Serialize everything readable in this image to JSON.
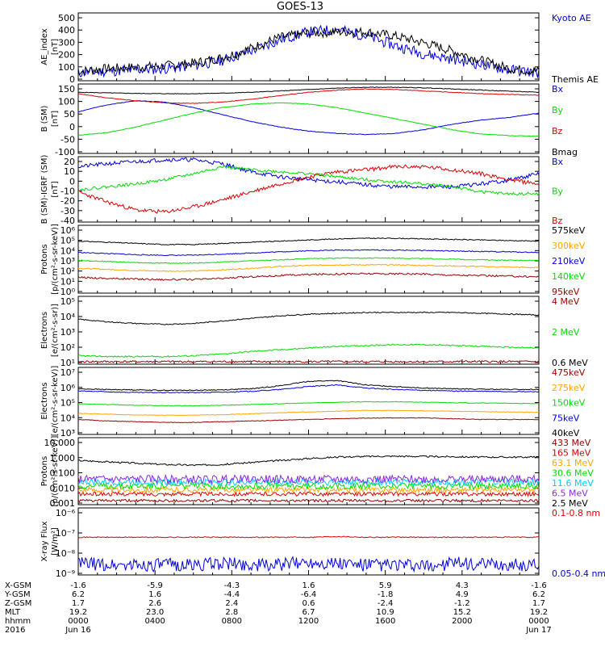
{
  "title": "GOES-13",
  "colors": {
    "black": "#000000",
    "blue": "#0000dd",
    "green": "#00dd00",
    "red": "#dd0000",
    "orange": "#ffa500",
    "darkred": "#990000",
    "yellow": "#f0f000",
    "cyan": "#00ccff",
    "purple": "#8a2be2"
  },
  "chart_data": [
    {
      "type": "line",
      "panel": "ae",
      "ylabel": "AE_index\n[nT]",
      "ylim": [
        0,
        500
      ],
      "yticks": [
        "500",
        "400",
        "300",
        "200",
        "100",
        "0"
      ],
      "series": [
        {
          "name": "Kyoto AE",
          "color": "blue",
          "seed": 11,
          "base": [
            60,
            70,
            80,
            90,
            110,
            150,
            220,
            300,
            360,
            380,
            330,
            260,
            200,
            160,
            120,
            80,
            60
          ],
          "noise": 40
        },
        {
          "name": "Themis AE",
          "color": "black",
          "seed": 7,
          "base": [
            70,
            90,
            100,
            110,
            130,
            170,
            240,
            320,
            350,
            360,
            360,
            330,
            280,
            220,
            150,
            90,
            70
          ],
          "noise": 35
        }
      ]
    },
    {
      "type": "line",
      "panel": "bsm",
      "ylabel": "B (SM)\n[nT]",
      "ylim": [
        -120,
        130
      ],
      "yticks": [
        "150",
        "100",
        "50",
        "0",
        "-50",
        "-100"
      ],
      "series": [
        {
          "name": "Bx",
          "color": "blue",
          "seed": 2,
          "base": [
            30,
            55,
            70,
            65,
            45,
            20,
            -5,
            -25,
            -40,
            -48,
            -52,
            -48,
            -35,
            -15,
            0,
            10,
            25
          ],
          "noise": 1
        },
        {
          "name": "By",
          "color": "green",
          "seed": 3,
          "base": [
            -55,
            -45,
            -25,
            0,
            25,
            45,
            58,
            62,
            58,
            45,
            25,
            5,
            -15,
            -35,
            -50,
            -56,
            -58
          ],
          "noise": 1
        },
        {
          "name": "Bz",
          "color": "red",
          "seed": 4,
          "base": [
            95,
            80,
            70,
            62,
            60,
            65,
            75,
            88,
            100,
            108,
            112,
            110,
            105,
            100,
            95,
            92,
            90
          ],
          "noise": 1
        },
        {
          "name": "Bmag",
          "color": "black",
          "seed": 5,
          "base": [
            100,
            98,
            96,
            95,
            95,
            97,
            100,
            105,
            110,
            115,
            118,
            118,
            116,
            112,
            108,
            104,
            100
          ],
          "noise": 1
        }
      ]
    },
    {
      "type": "line",
      "panel": "bigrf",
      "ylabel": "B (SM)-IGRF (SM)\n[nT]",
      "ylim": [
        -40,
        25
      ],
      "yticks": [
        "20",
        "10",
        "0",
        "-10",
        "-20",
        "-30",
        "-40"
      ],
      "series": [
        {
          "name": "Bx",
          "color": "blue",
          "seed": 21,
          "base": [
            15,
            18,
            20,
            22,
            22,
            18,
            10,
            5,
            2,
            0,
            -3,
            -5,
            -5,
            -5,
            -2,
            2,
            8
          ],
          "noise": 2
        },
        {
          "name": "By",
          "color": "green",
          "seed": 22,
          "base": [
            -8,
            -5,
            -2,
            2,
            8,
            15,
            12,
            10,
            8,
            5,
            2,
            0,
            -2,
            -5,
            -10,
            -12,
            -12
          ],
          "noise": 1.5
        },
        {
          "name": "Bz",
          "color": "red",
          "seed": 23,
          "base": [
            -10,
            -20,
            -28,
            -30,
            -25,
            -18,
            -10,
            -2,
            5,
            10,
            12,
            15,
            15,
            12,
            8,
            2,
            -2
          ],
          "noise": 2
        }
      ]
    },
    {
      "type": "line",
      "panel": "protons",
      "log": true,
      "ylabel": "Protons\n[p/(cm²-s-sr-keV)]",
      "ylim": [
        1,
        1000000
      ],
      "yticks": [
        "10⁶",
        "10⁵",
        "10⁴",
        "10³",
        "10²",
        "10¹",
        "10⁰"
      ],
      "series": [
        {
          "name": "575keV",
          "color": "black",
          "seed": 31,
          "base": [
            4.6,
            4.5,
            4.4,
            4.3,
            4.3,
            4.4,
            4.5,
            4.6,
            4.7,
            4.8,
            4.85,
            4.85,
            4.8,
            4.75,
            4.7,
            4.65,
            4.6
          ],
          "noise": 0.04
        },
        {
          "name": "300keV",
          "color": "orange",
          "seed": 32,
          "base": [
            2.2,
            2.1,
            2.0,
            1.95,
            1.95,
            2.05,
            2.2,
            2.35,
            2.45,
            2.5,
            2.5,
            2.5,
            2.45,
            2.4,
            2.35,
            2.3,
            2.25
          ],
          "noise": 0.05
        },
        {
          "name": "210keV",
          "color": "blue",
          "seed": 33,
          "base": [
            3.6,
            3.5,
            3.4,
            3.35,
            3.35,
            3.45,
            3.55,
            3.65,
            3.75,
            3.8,
            3.82,
            3.8,
            3.78,
            3.72,
            3.68,
            3.65,
            3.6
          ],
          "noise": 0.04
        },
        {
          "name": "140keV",
          "color": "green",
          "seed": 34,
          "base": [
            2.9,
            2.8,
            2.7,
            2.65,
            2.65,
            2.75,
            2.85,
            2.95,
            3.05,
            3.1,
            3.1,
            3.1,
            3.05,
            3.0,
            2.95,
            2.9,
            2.9
          ],
          "noise": 0.04
        },
        {
          "name": "95keV",
          "color": "darkred",
          "seed": 35,
          "base": [
            1.4,
            1.3,
            1.25,
            1.2,
            1.2,
            1.3,
            1.45,
            1.55,
            1.65,
            1.7,
            1.72,
            1.7,
            1.68,
            1.6,
            1.55,
            1.5,
            1.45
          ],
          "noise": 0.08
        }
      ]
    },
    {
      "type": "line",
      "panel": "electrons1",
      "log": true,
      "ylabel": "Electrons\n[e/(cm²-s-sr)]",
      "ylim": [
        10,
        100000
      ],
      "yticks": [
        "10⁵",
        "10⁴",
        "10³",
        "10²",
        "10¹"
      ],
      "series": [
        {
          "name": "4 MeV",
          "color": "darkred",
          "seed": 41,
          "base": [
            1.15,
            1.15,
            1.15,
            1.15,
            1.15,
            1.15,
            1.15,
            1.15,
            1.15,
            1.15,
            1.15,
            1.15,
            1.15,
            1.15,
            1.15,
            1.15,
            1.15
          ],
          "noise": 0.06
        },
        {
          "name": "2 MeV",
          "color": "green",
          "seed": 42,
          "base": [
            1.5,
            1.45,
            1.45,
            1.45,
            1.5,
            1.6,
            1.75,
            1.85,
            1.95,
            2.05,
            2.1,
            2.15,
            2.15,
            2.1,
            2.05,
            2.0,
            1.95
          ],
          "noise": 0.04
        },
        {
          "name": "0.6 MeV",
          "color": "black",
          "seed": 43,
          "base": [
            3.65,
            3.5,
            3.4,
            3.35,
            3.4,
            3.55,
            3.7,
            3.85,
            3.95,
            4.0,
            4.05,
            4.05,
            4.05,
            4.05,
            4.0,
            3.95,
            3.9
          ],
          "noise": 0.03
        }
      ]
    },
    {
      "type": "line",
      "panel": "electrons2",
      "log": true,
      "ylabel": "Electrons\n[e/(cm²-s-sr-keV)]",
      "ylim": [
        1000,
        30000000
      ],
      "yticks": [
        "10⁷",
        "10⁶",
        "10⁵",
        "10⁴",
        "10³"
      ],
      "series": [
        {
          "name": "475keV",
          "color": "darkred",
          "seed": 51,
          "base": [
            4.0,
            3.9,
            3.85,
            3.8,
            3.8,
            3.85,
            3.9,
            3.95,
            4.0,
            4.05,
            4.1,
            4.1,
            4.1,
            4.05,
            4.0,
            4.0,
            4.0
          ],
          "noise": 0.02
        },
        {
          "name": "275keV",
          "color": "orange",
          "seed": 52,
          "base": [
            4.4,
            4.35,
            4.3,
            4.28,
            4.28,
            4.32,
            4.38,
            4.45,
            4.5,
            4.55,
            4.6,
            4.6,
            4.58,
            4.55,
            4.52,
            4.5,
            4.48
          ],
          "noise": 0.02
        },
        {
          "name": "150keV",
          "color": "green",
          "seed": 53,
          "base": [
            5.05,
            5.0,
            4.95,
            4.92,
            4.92,
            4.95,
            5.0,
            5.05,
            5.1,
            5.15,
            5.18,
            5.18,
            5.15,
            5.12,
            5.1,
            5.08,
            5.05
          ],
          "noise": 0.02
        },
        {
          "name": "75keV",
          "color": "blue",
          "seed": 54,
          "base": [
            5.9,
            5.85,
            5.8,
            5.8,
            5.8,
            5.82,
            5.88,
            6.0,
            6.2,
            6.3,
            6.1,
            6.0,
            5.95,
            5.9,
            5.88,
            5.86,
            5.85
          ],
          "noise": 0.03
        },
        {
          "name": "40keV",
          "color": "black",
          "seed": 55,
          "base": [
            6.05,
            6.0,
            5.98,
            5.95,
            5.95,
            5.98,
            6.05,
            6.25,
            6.55,
            6.6,
            6.3,
            6.2,
            6.1,
            6.05,
            6.02,
            6.0,
            6.0
          ],
          "noise": 0.03
        }
      ]
    },
    {
      "type": "line",
      "panel": "protons2",
      "log": true,
      "ylabel": "Protons\n[p/(cm²-s-sr-keV)]",
      "ylim": [
        0.001,
        100
      ],
      "yticks": [
        "10.000",
        "1.000",
        "0.100",
        "0.010",
        "0.001"
      ],
      "series": [
        {
          "name": "433 MeV",
          "color": "darkred",
          "seed": 61,
          "base": [
            -2.7,
            -2.7,
            -2.7,
            -2.7,
            -2.7,
            -2.7,
            -2.7,
            -2.7,
            -2.7,
            -2.7,
            -2.7,
            -2.7,
            -2.7,
            -2.7,
            -2.7,
            -2.7,
            -2.7
          ],
          "noise": 0.1
        },
        {
          "name": "165 MeV",
          "color": "red",
          "seed": 62,
          "base": [
            -2.2,
            -2.2,
            -2.2,
            -2.2,
            -2.2,
            -2.2,
            -2.2,
            -2.2,
            -2.2,
            -2.2,
            -2.2,
            -2.2,
            -2.2,
            -2.2,
            -2.2,
            -2.2,
            -2.2
          ],
          "noise": 0.15
        },
        {
          "name": "63.1 MeV",
          "color": "orange",
          "seed": 63,
          "base": [
            -1.9,
            -1.9,
            -1.9,
            -1.9,
            -1.9,
            -1.9,
            -1.9,
            -1.9,
            -1.9,
            -1.9,
            -1.9,
            -1.9,
            -1.9,
            -1.9,
            -1.9,
            -1.9,
            -1.9
          ],
          "noise": 0.2
        },
        {
          "name": "30.6 MeV",
          "color": "green",
          "seed": 64,
          "base": [
            -1.6,
            -1.6,
            -1.6,
            -1.6,
            -1.6,
            -1.6,
            -1.6,
            -1.6,
            -1.6,
            -1.6,
            -1.6,
            -1.6,
            -1.6,
            -1.6,
            -1.6,
            -1.6,
            -1.6
          ],
          "noise": 0.25
        },
        {
          "name": "11.6 MeV",
          "color": "cyan",
          "seed": 65,
          "base": [
            -1.3,
            -1.3,
            -1.3,
            -1.3,
            -1.3,
            -1.3,
            -1.3,
            -1.3,
            -1.3,
            -1.3,
            -1.3,
            -1.3,
            -1.3,
            -1.3,
            -1.3,
            -1.3,
            -1.3
          ],
          "noise": 0.25
        },
        {
          "name": "6.5 MeV",
          "color": "purple",
          "seed": 66,
          "base": [
            -1.1,
            -1.1,
            -1.1,
            -1.1,
            -1.1,
            -1.1,
            -1.1,
            -1.1,
            -1.1,
            -1.1,
            -1.1,
            -1.1,
            -1.1,
            -1.1,
            -1.1,
            -1.1,
            -1.1
          ],
          "noise": 0.3
        },
        {
          "name": "2.5 MeV",
          "color": "black",
          "seed": 67,
          "base": [
            0.3,
            0.2,
            0.1,
            0.0,
            -0.05,
            0.0,
            0.15,
            0.3,
            0.45,
            0.55,
            0.6,
            0.62,
            0.6,
            0.58,
            0.55,
            0.55,
            0.55
          ],
          "noise": 0.06
        }
      ]
    },
    {
      "type": "line",
      "panel": "xray",
      "log": true,
      "ylabel": "X-ray Flux\n[W/m²]",
      "ylim": [
        1e-09,
        1e-05
      ],
      "yticks": [
        "10⁻⁶",
        "10⁻⁷",
        "10⁻⁸",
        "10⁻⁹"
      ],
      "series": [
        {
          "name": "0.1-0.8 nm",
          "color": "red",
          "seed": 71,
          "base": [
            -6.75,
            -6.75,
            -6.75,
            -6.75,
            -6.75,
            -6.75,
            -6.75,
            -6.75,
            -6.75,
            -6.7,
            -6.75,
            -6.75,
            -6.75,
            -6.75,
            -6.75,
            -6.75,
            -6.75
          ],
          "noise": 0.03
        },
        {
          "name": "0.05-0.4 nm",
          "color": "blue",
          "seed": 72,
          "base": [
            -8.3,
            -8.4,
            -8.4,
            -8.4,
            -8.4,
            -8.3,
            -8.4,
            -8.4,
            -8.2,
            -8.3,
            -8.4,
            -8.4,
            -8.5,
            -8.3,
            -8.4,
            -8.4,
            -8.4
          ],
          "noise": 0.4
        }
      ]
    }
  ],
  "xaxis": {
    "rows": [
      {
        "label": "X-GSM",
        "values": [
          "-1.6",
          "-5.9",
          "-4.3",
          "1.6",
          "5.9",
          "4.3",
          "-1.6"
        ]
      },
      {
        "label": "Y-GSM",
        "values": [
          "6.2",
          "1.6",
          "-4.4",
          "-6.4",
          "-1.8",
          "4.9",
          "6.2"
        ]
      },
      {
        "label": "Z-GSM",
        "values": [
          "1.7",
          "2.6",
          "2.4",
          "0.6",
          "-2.4",
          "-1.2",
          "1.7"
        ]
      },
      {
        "label": "MLT",
        "values": [
          "19.2",
          "23.0",
          "2.8",
          "6.7",
          "10.9",
          "15.2",
          "19.2"
        ]
      },
      {
        "label": "hhmm",
        "values": [
          "0000",
          "0400",
          "0800",
          "1200",
          "1600",
          "2000",
          "0000"
        ]
      },
      {
        "label": "2016",
        "values": [
          "Jun 16",
          "",
          "",
          "",
          "",
          "",
          "Jun 17"
        ]
      }
    ]
  }
}
